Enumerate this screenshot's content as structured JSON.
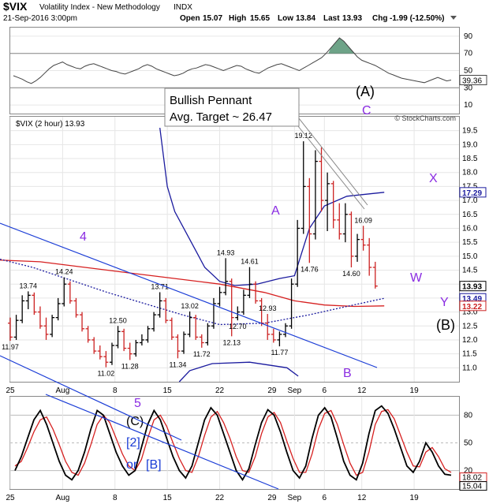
{
  "header": {
    "symbol": "$VIX",
    "name": "Volatility Index - New Methodology",
    "exchange": "INDX",
    "datetime": "21-Sep-2016 3:00pm",
    "open_label": "Open",
    "open": "15.07",
    "high_label": "High",
    "high": "15.65",
    "low_label": "Low",
    "low": "13.84",
    "last_label": "Last",
    "last": "13.93",
    "chg_label": "Chg",
    "chg": "-1.99 (-12.50%)",
    "watermark": "© StockCharts.com"
  },
  "rsi": {
    "ticks": [
      90,
      70,
      50,
      30,
      10
    ],
    "ylim": [
      0,
      100
    ],
    "value_badge": "39.36",
    "levels": [
      70,
      30
    ],
    "values": [
      44,
      42,
      40,
      37,
      35,
      38,
      42,
      47,
      52,
      56,
      58,
      60,
      57,
      55,
      53,
      52,
      55,
      57,
      58,
      56,
      54,
      52,
      50,
      49,
      47,
      46,
      48,
      50,
      52,
      55,
      57,
      55,
      52,
      50,
      48,
      46,
      44,
      45,
      47,
      50,
      52,
      53,
      55,
      57,
      56,
      54,
      52,
      50,
      52,
      54,
      56,
      55,
      52,
      50,
      48,
      47,
      50,
      53,
      55,
      57,
      58,
      56,
      54,
      52,
      50,
      53,
      56,
      59,
      62,
      65,
      70,
      76,
      82,
      88,
      84,
      78,
      72,
      66,
      62,
      60,
      58,
      56,
      53,
      50,
      47,
      45,
      43,
      41,
      40,
      39,
      38,
      37,
      36,
      38,
      40,
      42,
      40,
      38,
      39
    ]
  },
  "chart_data": {
    "type": "line",
    "title": "$VIX (2 hour) 13.93",
    "ylim": [
      10.5,
      20.0
    ],
    "ytick_labels": [
      "11.0",
      "11.5",
      "12.0",
      "12.5",
      "13.0",
      "13.5",
      "14.0",
      "14.5",
      "15.0",
      "15.5",
      "16.0",
      "16.5",
      "17.0",
      "17.5",
      "18.0",
      "18.5",
      "19.0",
      "19.5"
    ],
    "x_range_days": [
      0,
      60
    ],
    "x_tick_labels": [
      {
        "day": 0,
        "label": "25"
      },
      {
        "day": 7,
        "label": "Aug"
      },
      {
        "day": 14,
        "label": "8"
      },
      {
        "day": 21,
        "label": "15"
      },
      {
        "day": 28,
        "label": "22"
      },
      {
        "day": 35,
        "label": "29"
      },
      {
        "day": 38,
        "label": "Sep"
      },
      {
        "day": 42,
        "label": "6"
      },
      {
        "day": 47,
        "label": "12"
      },
      {
        "day": 54,
        "label": "19"
      }
    ],
    "price_series": [
      {
        "d": 0.0,
        "o": 12.6,
        "h": 12.8,
        "l": 11.97,
        "c": 12.1
      },
      {
        "d": 0.8,
        "o": 12.1,
        "h": 12.9,
        "l": 12.0,
        "c": 12.7
      },
      {
        "d": 1.6,
        "o": 12.7,
        "h": 13.6,
        "l": 12.6,
        "c": 13.4
      },
      {
        "d": 2.4,
        "o": 13.4,
        "h": 13.74,
        "l": 13.1,
        "c": 13.6
      },
      {
        "d": 3.2,
        "o": 13.6,
        "h": 13.7,
        "l": 12.9,
        "c": 13.0
      },
      {
        "d": 4.0,
        "o": 13.0,
        "h": 13.2,
        "l": 12.4,
        "c": 12.5
      },
      {
        "d": 4.8,
        "o": 12.5,
        "h": 12.8,
        "l": 12.0,
        "c": 12.2
      },
      {
        "d": 5.6,
        "o": 12.2,
        "h": 12.9,
        "l": 12.1,
        "c": 12.8
      },
      {
        "d": 6.4,
        "o": 12.8,
        "h": 13.5,
        "l": 12.7,
        "c": 13.3
      },
      {
        "d": 7.2,
        "o": 13.3,
        "h": 14.24,
        "l": 13.2,
        "c": 14.0
      },
      {
        "d": 8.0,
        "o": 14.0,
        "h": 14.1,
        "l": 13.3,
        "c": 13.4
      },
      {
        "d": 8.8,
        "o": 13.4,
        "h": 13.5,
        "l": 12.8,
        "c": 12.9
      },
      {
        "d": 9.6,
        "o": 12.9,
        "h": 13.0,
        "l": 12.3,
        "c": 12.4
      },
      {
        "d": 10.4,
        "o": 12.4,
        "h": 12.5,
        "l": 11.9,
        "c": 12.0
      },
      {
        "d": 11.2,
        "o": 12.0,
        "h": 12.1,
        "l": 11.5,
        "c": 11.6
      },
      {
        "d": 12.0,
        "o": 11.6,
        "h": 11.8,
        "l": 11.3,
        "c": 11.4
      },
      {
        "d": 12.8,
        "o": 11.4,
        "h": 11.6,
        "l": 11.02,
        "c": 11.2
      },
      {
        "d": 13.6,
        "o": 11.2,
        "h": 11.9,
        "l": 11.1,
        "c": 11.8
      },
      {
        "d": 14.4,
        "o": 11.8,
        "h": 12.5,
        "l": 11.7,
        "c": 12.3
      },
      {
        "d": 15.2,
        "o": 12.3,
        "h": 12.4,
        "l": 11.6,
        "c": 11.7
      },
      {
        "d": 16.0,
        "o": 11.7,
        "h": 11.9,
        "l": 11.28,
        "c": 11.5
      },
      {
        "d": 16.8,
        "o": 11.5,
        "h": 12.0,
        "l": 11.4,
        "c": 11.9
      },
      {
        "d": 17.6,
        "o": 11.9,
        "h": 12.2,
        "l": 11.8,
        "c": 12.0
      },
      {
        "d": 18.4,
        "o": 12.0,
        "h": 12.5,
        "l": 11.9,
        "c": 12.4
      },
      {
        "d": 19.2,
        "o": 12.4,
        "h": 13.0,
        "l": 12.3,
        "c": 12.9
      },
      {
        "d": 20.0,
        "o": 12.9,
        "h": 13.71,
        "l": 12.8,
        "c": 13.4
      },
      {
        "d": 20.8,
        "o": 13.4,
        "h": 13.5,
        "l": 12.6,
        "c": 12.7
      },
      {
        "d": 21.6,
        "o": 12.7,
        "h": 12.8,
        "l": 12.0,
        "c": 12.1
      },
      {
        "d": 22.4,
        "o": 12.1,
        "h": 12.2,
        "l": 11.34,
        "c": 11.6
      },
      {
        "d": 23.2,
        "o": 11.6,
        "h": 12.3,
        "l": 11.5,
        "c": 12.2
      },
      {
        "d": 24.0,
        "o": 12.2,
        "h": 13.02,
        "l": 12.1,
        "c": 12.8
      },
      {
        "d": 24.8,
        "o": 12.8,
        "h": 12.9,
        "l": 12.0,
        "c": 12.1
      },
      {
        "d": 25.6,
        "o": 12.1,
        "h": 12.2,
        "l": 11.72,
        "c": 11.9
      },
      {
        "d": 26.4,
        "o": 11.9,
        "h": 12.6,
        "l": 11.8,
        "c": 12.5
      },
      {
        "d": 27.2,
        "o": 12.5,
        "h": 13.5,
        "l": 12.4,
        "c": 13.3
      },
      {
        "d": 28.0,
        "o": 13.3,
        "h": 13.9,
        "l": 13.2,
        "c": 13.7
      },
      {
        "d": 28.8,
        "o": 13.7,
        "h": 14.93,
        "l": 13.6,
        "c": 14.1
      },
      {
        "d": 29.6,
        "o": 14.1,
        "h": 14.2,
        "l": 12.13,
        "c": 12.8
      },
      {
        "d": 30.4,
        "o": 12.8,
        "h": 13.2,
        "l": 12.7,
        "c": 13.0
      },
      {
        "d": 31.2,
        "o": 13.0,
        "h": 13.8,
        "l": 12.9,
        "c": 13.6
      },
      {
        "d": 32.0,
        "o": 13.6,
        "h": 14.61,
        "l": 13.5,
        "c": 14.0
      },
      {
        "d": 32.8,
        "o": 14.0,
        "h": 14.1,
        "l": 13.3,
        "c": 13.4
      },
      {
        "d": 33.6,
        "o": 13.4,
        "h": 13.5,
        "l": 12.5,
        "c": 12.6
      },
      {
        "d": 34.4,
        "o": 12.6,
        "h": 12.93,
        "l": 12.0,
        "c": 12.2
      },
      {
        "d": 35.2,
        "o": 12.2,
        "h": 12.4,
        "l": 11.9,
        "c": 12.0
      },
      {
        "d": 36.0,
        "o": 12.0,
        "h": 12.3,
        "l": 11.77,
        "c": 12.2
      },
      {
        "d": 36.8,
        "o": 12.2,
        "h": 12.6,
        "l": 12.1,
        "c": 12.5
      },
      {
        "d": 37.6,
        "o": 12.5,
        "h": 14.2,
        "l": 12.4,
        "c": 14.0
      },
      {
        "d": 38.4,
        "o": 14.0,
        "h": 16.3,
        "l": 13.9,
        "c": 16.0
      },
      {
        "d": 39.2,
        "o": 16.0,
        "h": 19.12,
        "l": 15.8,
        "c": 17.5
      },
      {
        "d": 40.0,
        "o": 17.5,
        "h": 17.8,
        "l": 14.76,
        "c": 15.8
      },
      {
        "d": 40.8,
        "o": 15.8,
        "h": 18.8,
        "l": 15.6,
        "c": 18.4
      },
      {
        "d": 41.6,
        "o": 18.4,
        "h": 18.9,
        "l": 16.6,
        "c": 17.0
      },
      {
        "d": 42.4,
        "o": 17.0,
        "h": 18.0,
        "l": 15.9,
        "c": 17.6
      },
      {
        "d": 43.2,
        "o": 17.6,
        "h": 17.7,
        "l": 16.0,
        "c": 16.3
      },
      {
        "d": 44.0,
        "o": 16.3,
        "h": 16.9,
        "l": 15.6,
        "c": 15.8
      },
      {
        "d": 44.8,
        "o": 15.8,
        "h": 16.9,
        "l": 15.5,
        "c": 16.5
      },
      {
        "d": 45.6,
        "o": 16.5,
        "h": 16.6,
        "l": 14.6,
        "c": 15.0
      },
      {
        "d": 46.4,
        "o": 15.0,
        "h": 15.8,
        "l": 14.8,
        "c": 15.6
      },
      {
        "d": 47.2,
        "o": 15.6,
        "h": 16.09,
        "l": 15.2,
        "c": 15.4
      },
      {
        "d": 48.0,
        "o": 15.4,
        "h": 15.65,
        "l": 14.3,
        "c": 14.6
      },
      {
        "d": 48.8,
        "o": 14.6,
        "h": 14.8,
        "l": 13.84,
        "c": 13.93
      }
    ],
    "price_labels": [
      {
        "d": 0.0,
        "v": 11.97,
        "text": "11.97",
        "pos": "below"
      },
      {
        "d": 2.4,
        "v": 13.74,
        "text": "13.74",
        "pos": "above"
      },
      {
        "d": 7.2,
        "v": 14.24,
        "text": "14.24",
        "pos": "above"
      },
      {
        "d": 12.8,
        "v": 11.02,
        "text": "11.02",
        "pos": "below"
      },
      {
        "d": 14.4,
        "v": 12.5,
        "text": "12.50",
        "pos": "above"
      },
      {
        "d": 16.0,
        "v": 11.28,
        "text": "11.28",
        "pos": "below"
      },
      {
        "d": 20.0,
        "v": 13.71,
        "text": "13.71",
        "pos": "above"
      },
      {
        "d": 22.4,
        "v": 11.34,
        "text": "11.34",
        "pos": "below"
      },
      {
        "d": 24.0,
        "v": 13.02,
        "text": "13.02",
        "pos": "above"
      },
      {
        "d": 25.6,
        "v": 11.72,
        "text": "11.72",
        "pos": "below"
      },
      {
        "d": 28.8,
        "v": 14.93,
        "text": "14.93",
        "pos": "above"
      },
      {
        "d": 29.6,
        "v": 12.13,
        "text": "12.13",
        "pos": "below"
      },
      {
        "d": 30.4,
        "v": 12.7,
        "text": "12.70",
        "pos": "below"
      },
      {
        "d": 32.0,
        "v": 14.61,
        "text": "14.61",
        "pos": "above"
      },
      {
        "d": 34.4,
        "v": 12.93,
        "text": "12.93",
        "pos": "above"
      },
      {
        "d": 36.0,
        "v": 11.77,
        "text": "11.77",
        "pos": "below"
      },
      {
        "d": 39.2,
        "v": 19.12,
        "text": "19.12",
        "pos": "above"
      },
      {
        "d": 40.0,
        "v": 14.76,
        "text": "14.76",
        "pos": "below"
      },
      {
        "d": 45.6,
        "v": 14.6,
        "text": "14.60",
        "pos": "below"
      },
      {
        "d": 47.2,
        "v": 16.09,
        "text": "16.09",
        "pos": "above"
      }
    ],
    "right_badges": [
      {
        "v": 17.29,
        "text": "17.29",
        "color": "#1a1a9e"
      },
      {
        "v": 13.93,
        "text": "13.93",
        "color": "#000000"
      },
      {
        "v": 13.49,
        "text": "13.49",
        "color": "#1a1a9e"
      },
      {
        "v": 13.22,
        "text": "13.22",
        "color": "#cc2222"
      }
    ],
    "ma_red": [
      [
        -3,
        14.88
      ],
      [
        4,
        14.8
      ],
      [
        10,
        14.6
      ],
      [
        16,
        14.4
      ],
      [
        22,
        14.2
      ],
      [
        28,
        14.0
      ],
      [
        34,
        13.7
      ],
      [
        38,
        13.4
      ],
      [
        42,
        13.25
      ],
      [
        46,
        13.2
      ],
      [
        50,
        13.22
      ]
    ],
    "ma_dotted": [
      [
        -3,
        15.0
      ],
      [
        3,
        14.6
      ],
      [
        8,
        14.15
      ],
      [
        13,
        13.7
      ],
      [
        18,
        13.3
      ],
      [
        23,
        12.9
      ],
      [
        28,
        12.55
      ],
      [
        34,
        12.6
      ],
      [
        40,
        12.9
      ],
      [
        45,
        13.2
      ],
      [
        50,
        13.49
      ]
    ],
    "bb_upper": [
      [
        20,
        19.6
      ],
      [
        21,
        17.5
      ],
      [
        22,
        16.6
      ],
      [
        24,
        15.6
      ],
      [
        26,
        14.6
      ],
      [
        28,
        14.1
      ],
      [
        30,
        13.95
      ],
      [
        33,
        14.0
      ],
      [
        36,
        14.2
      ],
      [
        38,
        14.3
      ],
      [
        40,
        16.0
      ],
      [
        42,
        16.8
      ],
      [
        45,
        17.15
      ],
      [
        50,
        17.29
      ]
    ],
    "bb_lower": [
      [
        22.6,
        10.5
      ],
      [
        24,
        10.9
      ],
      [
        27,
        11.15
      ],
      [
        32,
        11.2
      ],
      [
        37,
        11.0
      ],
      [
        38.5,
        10.7
      ]
    ],
    "annotation": {
      "line1": "Bullish Pennant",
      "line2": "Avg. Target ~ 26.47"
    },
    "wave_labels": {
      "w4": "4",
      "w5": "5",
      "wC_paren": "(C)",
      "w2b1": "[2]",
      "w2b2": "or",
      "w2b3": "[B]",
      "wA": "A",
      "wB": "B",
      "wC": "C",
      "wA_paren": "(A)",
      "wX": "X",
      "wW": "W",
      "wY": "Y",
      "wB_paren": "(B)"
    }
  },
  "stoch": {
    "ticks": [
      80,
      50,
      20
    ],
    "ylim": [
      0,
      100
    ],
    "badges": [
      "18.02",
      "15.04"
    ],
    "fast": [
      20,
      35,
      55,
      75,
      85,
      70,
      50,
      30,
      15,
      10,
      20,
      40,
      65,
      85,
      80,
      60,
      40,
      25,
      15,
      20,
      45,
      70,
      85,
      75,
      55,
      35,
      20,
      12,
      25,
      50,
      75,
      88,
      80,
      60,
      40,
      20,
      10,
      22,
      48,
      72,
      86,
      80,
      62,
      40,
      20,
      12,
      25,
      55,
      80,
      88,
      78,
      55,
      30,
      15,
      10,
      28,
      60,
      85,
      90,
      82,
      65,
      45,
      25,
      18,
      30,
      50,
      40,
      25,
      16,
      15
    ],
    "slow": [
      25,
      30,
      45,
      62,
      75,
      78,
      65,
      48,
      30,
      18,
      15,
      28,
      48,
      70,
      80,
      72,
      55,
      38,
      25,
      20,
      32,
      55,
      75,
      80,
      68,
      50,
      33,
      20,
      18,
      35,
      58,
      78,
      84,
      72,
      55,
      35,
      20,
      18,
      35,
      60,
      78,
      83,
      72,
      52,
      33,
      18,
      18,
      38,
      65,
      82,
      85,
      70,
      48,
      28,
      15,
      18,
      40,
      70,
      84,
      86,
      76,
      58,
      40,
      25,
      24,
      40,
      45,
      35,
      22,
      18
    ]
  }
}
